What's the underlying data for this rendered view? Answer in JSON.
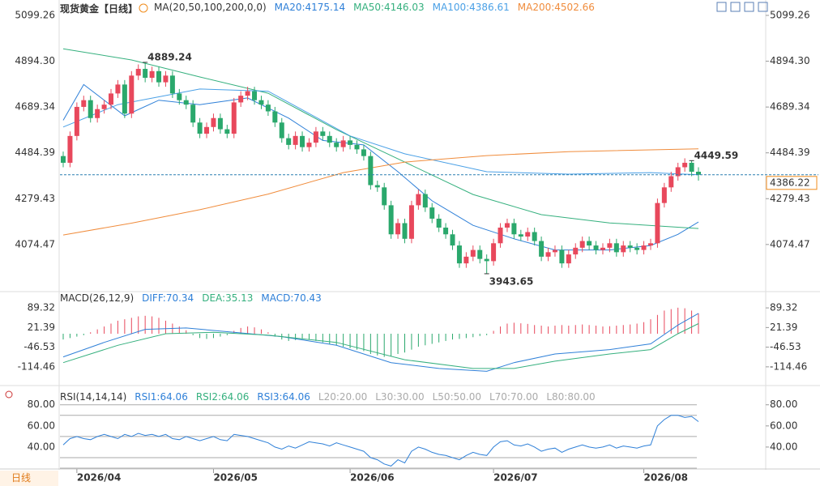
{
  "chart_data": {
    "type": "candlestick",
    "title": "现货黄金【日线】",
    "indicator": "MA(20,50,100,200,0,0)",
    "categories": [
      null,
      null,
      "2026/04",
      null,
      null,
      null,
      null,
      null,
      null,
      null,
      null,
      null,
      null,
      null,
      null,
      null,
      null,
      null,
      null,
      null,
      null,
      null,
      "2026/05",
      null,
      null,
      null,
      null,
      null,
      null,
      null,
      null,
      null,
      null,
      null,
      null,
      null,
      null,
      null,
      null,
      null,
      null,
      null,
      "2026/06",
      null,
      null,
      null,
      null,
      null,
      null,
      null,
      null,
      null,
      null,
      null,
      null,
      null,
      null,
      null,
      null,
      null,
      null,
      null,
      null,
      "2026/07",
      null,
      null,
      null,
      null,
      null,
      null,
      null,
      null,
      null,
      null,
      null,
      null,
      null,
      null,
      null,
      null,
      null,
      null,
      null,
      null,
      null,
      "2026/08",
      null,
      null,
      null,
      null,
      null,
      null,
      null,
      null
    ],
    "candles": {
      "open": [
        4470,
        4440,
        4560,
        4690,
        4720,
        4640,
        4680,
        4700,
        4750,
        4790,
        4660,
        4830,
        4860,
        4820,
        4850,
        4800,
        4830,
        4750,
        4720,
        4700,
        4620,
        4570,
        4600,
        4640,
        4590,
        4570,
        4710,
        4740,
        4760,
        4720,
        4700,
        4670,
        4620,
        4550,
        4520,
        4560,
        4510,
        4530,
        4580,
        4560,
        4530,
        4510,
        4540,
        4520,
        4500,
        4470,
        4340,
        4330,
        4250,
        4120,
        4170,
        4100,
        4250,
        4300,
        4240,
        4190,
        4150,
        4120,
        4070,
        3990,
        4020,
        4050,
        4010,
        4000,
        4080,
        4150,
        4170,
        4120,
        4110,
        4130,
        4090,
        4020,
        4040,
        4050,
        3990,
        4030,
        4060,
        4090,
        4070,
        4050,
        4060,
        4080,
        4040,
        4070,
        4060,
        4050,
        4070,
        4080,
        4260,
        4330,
        4380,
        4420,
        4440,
        4400
      ],
      "high": [
        4490,
        4580,
        4710,
        4740,
        4740,
        4700,
        4720,
        4770,
        4810,
        4810,
        4850,
        4880,
        4889.24,
        4870,
        4870,
        4850,
        4850,
        4770,
        4740,
        4720,
        4640,
        4620,
        4660,
        4660,
        4610,
        4730,
        4760,
        4780,
        4780,
        4740,
        4720,
        4690,
        4640,
        4570,
        4580,
        4580,
        4550,
        4600,
        4600,
        4580,
        4550,
        4560,
        4560,
        4540,
        4520,
        4490,
        4360,
        4350,
        4270,
        4190,
        4190,
        4270,
        4320,
        4320,
        4260,
        4210,
        4170,
        4140,
        4090,
        4040,
        4070,
        4070,
        4030,
        4100,
        4170,
        4190,
        4190,
        4140,
        4150,
        4150,
        4110,
        4060,
        4070,
        4070,
        4050,
        4080,
        4110,
        4110,
        4090,
        4080,
        4100,
        4100,
        4090,
        4090,
        4080,
        4090,
        4100,
        4280,
        4350,
        4400,
        4440,
        4460,
        4449.59,
        4420
      ],
      "low": [
        4420,
        4420,
        4540,
        4670,
        4620,
        4620,
        4660,
        4680,
        4730,
        4640,
        4640,
        4810,
        4800,
        4800,
        4780,
        4780,
        4730,
        4700,
        4680,
        4600,
        4550,
        4550,
        4580,
        4570,
        4550,
        4550,
        4690,
        4720,
        4700,
        4680,
        4650,
        4600,
        4530,
        4500,
        4500,
        4490,
        4490,
        4510,
        4540,
        4510,
        4490,
        4490,
        4500,
        4480,
        4450,
        4320,
        4310,
        4230,
        4100,
        4100,
        4080,
        4080,
        4230,
        4220,
        4170,
        4130,
        4100,
        4050,
        3970,
        3970,
        4000,
        3990,
        3943.65,
        3980,
        4060,
        4130,
        4100,
        4090,
        4090,
        4070,
        4000,
        4000,
        4020,
        3970,
        3970,
        4010,
        4040,
        4050,
        4030,
        4030,
        4040,
        4020,
        4020,
        4040,
        4030,
        4030,
        4050,
        4060,
        4240,
        4310,
        4360,
        4400,
        4380,
        4360
      ],
      "close": [
        4440,
        4560,
        4690,
        4720,
        4640,
        4680,
        4700,
        4750,
        4790,
        4660,
        4830,
        4860,
        4820,
        4850,
        4800,
        4830,
        4750,
        4720,
        4700,
        4620,
        4570,
        4600,
        4640,
        4590,
        4570,
        4710,
        4740,
        4760,
        4720,
        4700,
        4670,
        4620,
        4550,
        4520,
        4560,
        4510,
        4530,
        4580,
        4560,
        4530,
        4510,
        4540,
        4520,
        4500,
        4470,
        4340,
        4330,
        4250,
        4120,
        4170,
        4100,
        4250,
        4300,
        4240,
        4190,
        4150,
        4120,
        4070,
        3990,
        4020,
        4050,
        4010,
        4000,
        4080,
        4150,
        4170,
        4120,
        4110,
        4130,
        4090,
        4020,
        4040,
        4050,
        3990,
        4030,
        4060,
        4090,
        4070,
        4050,
        4060,
        4080,
        4040,
        4070,
        4060,
        4050,
        4070,
        4080,
        4260,
        4330,
        4380,
        4420,
        4440,
        4400,
        4386.22
      ],
      "up_color": "#e8485c",
      "down_color": "#2aa86c"
    },
    "ylim": [
      3871,
      5150
    ],
    "yticks": [
      4074.47,
      4279.43,
      4484.39,
      4689.34,
      {
        "value": 4894.3,
        "label": "4894.30"
      },
      5099.26
    ],
    "series": [
      {
        "name": "MA20:4175.14",
        "color": "#2f80d8",
        "x": [
          0,
          3,
          9,
          14,
          20,
          27,
          33,
          38,
          44,
          49,
          54,
          60,
          66,
          72,
          80,
          86,
          90,
          93
        ],
        "values": [
          4630,
          4790,
          4650,
          4720,
          4700,
          4730,
          4640,
          4540,
          4520,
          4400,
          4270,
          4160,
          4100,
          4050,
          4050,
          4070,
          4120,
          4175.14
        ]
      },
      {
        "name": "MA50:4146.03",
        "color": "#35b07e",
        "x": [
          0,
          10,
          20,
          30,
          40,
          50,
          60,
          70,
          80,
          93
        ],
        "values": [
          4950,
          4900,
          4824,
          4751,
          4588,
          4443,
          4298,
          4208,
          4171,
          4146.03
        ]
      },
      {
        "name": "MA100:4386.61",
        "color": "#4aa0e6",
        "x": [
          0,
          8,
          20,
          30,
          42,
          50,
          62,
          74,
          86,
          93
        ],
        "values": [
          4600,
          4700,
          4770,
          4760,
          4560,
          4480,
          4400,
          4389,
          4396,
          4386.61
        ]
      },
      {
        "name": "MA200:4502.66",
        "color": "#f08c3c",
        "x": [
          0,
          10,
          20,
          30,
          41,
          50,
          62,
          74,
          93
        ],
        "values": [
          4117,
          4170,
          4230,
          4300,
          4396,
          4443,
          4472,
          4490,
          4502.66
        ]
      }
    ],
    "annotations": [
      {
        "x": 12,
        "y": 4889.24,
        "color": "#e8485c"
      },
      {
        "x": 62,
        "y": 3943.65,
        "color": "#2aa86c"
      },
      {
        "x": 92,
        "y": 4449.59,
        "color": "#e8485c"
      }
    ],
    "last_price": 4386.22,
    "last_price_color": "#f08c1c",
    "macd": {
      "title": "MACD(26,12,9)",
      "labels": [
        {
          "text": "DIFF:70.34",
          "color": "#2f80d8"
        },
        {
          "text": "DEA:35.13",
          "color": "#35b07e"
        },
        {
          "text": "MACD:70.43",
          "color": "#2f80d8"
        }
      ],
      "ylim": [
        -168,
        140
      ],
      "yticks": [
        -114.46,
        -46.53,
        21.39,
        89.32
      ],
      "histogram": [
        -20,
        -15,
        -10,
        -5,
        5,
        15,
        25,
        35,
        45,
        50,
        55,
        60,
        62,
        60,
        55,
        45,
        35,
        25,
        12,
        -5,
        -15,
        -18,
        -15,
        -10,
        -5,
        10,
        20,
        25,
        22,
        15,
        5,
        -10,
        -20,
        -25,
        -22,
        -18,
        -20,
        -25,
        -30,
        -35,
        -40,
        -45,
        -50,
        -55,
        -60,
        -70,
        -75,
        -80,
        -78,
        -70,
        -65,
        -55,
        -45,
        -40,
        -35,
        -30,
        -25,
        -20,
        -18,
        -15,
        -12,
        -8,
        -5,
        10,
        25,
        35,
        38,
        36,
        34,
        30,
        28,
        25,
        28,
        30,
        28,
        30,
        32,
        30,
        28,
        25,
        26,
        28,
        30,
        32,
        35,
        40,
        50,
        65,
        80,
        85,
        90,
        88,
        80,
        70.43
      ],
      "series": [
        {
          "name": "DIFF",
          "color": "#2f80d8",
          "x": [
            0,
            6,
            12,
            18,
            25,
            32,
            40,
            48,
            55,
            62,
            66,
            72,
            80,
            86,
            90,
            93
          ],
          "values": [
            -80,
            -30,
            15,
            20,
            5,
            -10,
            -40,
            -100,
            -120,
            -130,
            -100,
            -70,
            -55,
            -35,
            30,
            70.34
          ]
        },
        {
          "name": "DEA",
          "color": "#35b07e",
          "x": [
            0,
            8,
            15,
            22,
            30,
            40,
            50,
            60,
            66,
            72,
            80,
            86,
            90,
            93
          ],
          "values": [
            -100,
            -40,
            0,
            5,
            -5,
            -30,
            -90,
            -120,
            -120,
            -95,
            -70,
            -55,
            0,
            35.13
          ]
        }
      ]
    },
    "rsi": {
      "title": "RSI(14,14,14)",
      "labels": [
        {
          "text": "RSI1:64.06",
          "color": "#2f80d8"
        },
        {
          "text": "RSI2:64.06",
          "color": "#35b07e"
        },
        {
          "text": "RSI3:64.06",
          "color": "#2f80d8"
        },
        {
          "text": "L20:20.00",
          "color": "#aaaaaa"
        },
        {
          "text": "L30:30.00",
          "color": "#aaaaaa"
        },
        {
          "text": "L50:50.00",
          "color": "#aaaaaa"
        },
        {
          "text": "L70:70.00",
          "color": "#aaaaaa"
        },
        {
          "text": "L80:80.00",
          "color": "#aaaaaa"
        }
      ],
      "levels": [
        20,
        30,
        50,
        70,
        80
      ],
      "ylim": [
        20,
        89
      ],
      "yticks": [
        {
          "value": 40,
          "label": "40.00"
        },
        {
          "value": 60,
          "label": "60.00"
        },
        {
          "value": 80,
          "label": "80.00"
        }
      ],
      "color": "#2f80d8",
      "values": [
        42,
        48,
        50,
        48,
        47,
        50,
        52,
        50,
        48,
        52,
        50,
        53,
        51,
        52,
        50,
        52,
        48,
        47,
        50,
        48,
        46,
        48,
        50,
        47,
        46,
        52,
        51,
        50,
        48,
        46,
        44,
        40,
        38,
        41,
        39,
        42,
        45,
        44,
        43,
        41,
        44,
        42,
        40,
        38,
        36,
        30,
        28,
        24,
        22,
        28,
        25,
        36,
        40,
        38,
        35,
        33,
        32,
        30,
        28,
        32,
        35,
        33,
        32,
        40,
        45,
        46,
        42,
        41,
        43,
        40,
        36,
        38,
        39,
        35,
        38,
        40,
        42,
        40,
        39,
        40,
        42,
        39,
        41,
        40,
        39,
        41,
        42,
        60,
        66,
        70,
        70,
        68,
        69,
        64.06
      ]
    },
    "timeframe_button": "日线"
  }
}
